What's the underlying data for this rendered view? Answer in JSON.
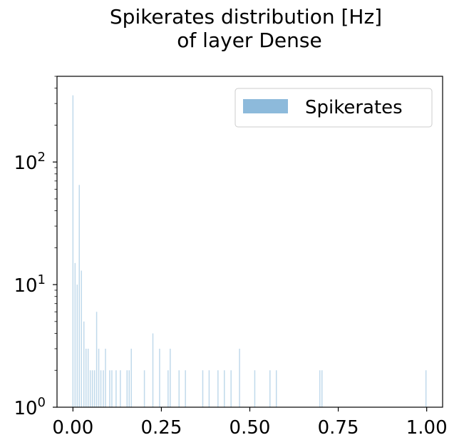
{
  "chart_data": {
    "type": "bar",
    "title_lines": [
      "Spikerates distribution [Hz]",
      "of layer Dense"
    ],
    "xlabel": "",
    "ylabel": "",
    "xlim": [
      -0.045,
      1.045
    ],
    "ylim": [
      1,
      500
    ],
    "yscale": "log",
    "x_ticks": [
      0.0,
      0.25,
      0.5,
      0.75,
      1.0
    ],
    "x_tick_labels": [
      "0.00",
      "0.25",
      "0.50",
      "0.75",
      "1.00"
    ],
    "y_ticks": [
      1,
      10,
      100
    ],
    "y_tick_labels": [
      {
        "base": "10",
        "exp": "0"
      },
      {
        "base": "10",
        "exp": "1"
      },
      {
        "base": "10",
        "exp": "2"
      }
    ],
    "grid": false,
    "legend": {
      "placement": "top-right",
      "entries": [
        "Spikerates"
      ]
    },
    "series": [
      {
        "name": "Spikerates",
        "color": "#8dbadb",
        "bin_width": 0.003,
        "x": [
          0.0,
          0.006,
          0.012,
          0.018,
          0.024,
          0.031,
          0.037,
          0.043,
          0.049,
          0.055,
          0.061,
          0.067,
          0.073,
          0.079,
          0.086,
          0.092,
          0.104,
          0.11,
          0.122,
          0.134,
          0.153,
          0.159,
          0.165,
          0.202,
          0.226,
          0.245,
          0.269,
          0.275,
          0.3,
          0.318,
          0.367,
          0.385,
          0.41,
          0.428,
          0.447,
          0.471,
          0.514,
          0.557,
          0.575,
          0.698,
          0.704,
          0.998
        ],
        "values": [
          350,
          15,
          10,
          65,
          13,
          5,
          3,
          3,
          2,
          2,
          2,
          6,
          3,
          2,
          2,
          3,
          2,
          2,
          2,
          2,
          2,
          2,
          3,
          2,
          4,
          3,
          2,
          3,
          2,
          2,
          2,
          2,
          2,
          2,
          2,
          3,
          2,
          2,
          2,
          2,
          2,
          2
        ]
      }
    ]
  }
}
